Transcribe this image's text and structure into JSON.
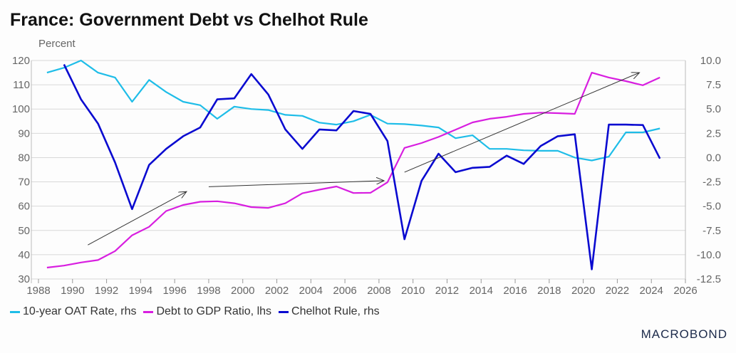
{
  "chart_data": {
    "type": "line",
    "title": "France: Government Debt vs Chelhot Rule",
    "left_axis_label": "Percent",
    "x_ticks": [
      "1988",
      "1990",
      "1992",
      "1994",
      "1996",
      "1998",
      "2000",
      "2002",
      "2004",
      "2006",
      "2008",
      "2010",
      "2012",
      "2014",
      "2016",
      "2018",
      "2020",
      "2022",
      "2024",
      "2026"
    ],
    "xlim": [
      1988,
      2026
    ],
    "ylim_left": [
      30,
      120
    ],
    "ylim_right": [
      -12.5,
      10
    ],
    "left_ticks": [
      "120",
      "110",
      "100",
      "90",
      "80",
      "70",
      "60",
      "50",
      "40",
      "30"
    ],
    "right_ticks": [
      "10.0",
      "7.5",
      "5.0",
      "2.5",
      "0.0",
      "-2.5",
      "-5.0",
      "-7.5",
      "-10.0",
      "-12.5"
    ],
    "grid": true,
    "legend_position": "bottom",
    "x": [
      1988.5,
      1989.5,
      1990.5,
      1991.5,
      1992.5,
      1993.5,
      1994.5,
      1995.5,
      1996.5,
      1997.5,
      1998.5,
      1999.5,
      2000.5,
      2001.5,
      2002.5,
      2003.5,
      2004.5,
      2005.5,
      2006.5,
      2007.5,
      2008.5,
      2009.5,
      2010.5,
      2011.5,
      2012.5,
      2013.5,
      2014.5,
      2015.5,
      2016.5,
      2017.5,
      2018.5,
      2019.5,
      2020.5,
      2021.5,
      2022.5,
      2023.5,
      2024.5
    ],
    "series": [
      {
        "name": "10-year OAT Rate, rhs",
        "axis": "right",
        "color": "#1ebde8",
        "values": [
          8.75,
          9.25,
          10.0,
          8.75,
          8.25,
          5.75,
          8.0,
          6.75,
          5.75,
          5.4,
          4.0,
          5.25,
          5.0,
          4.9,
          4.4,
          4.3,
          3.6,
          3.4,
          3.75,
          4.4,
          3.5,
          3.45,
          3.3,
          3.1,
          2.0,
          2.3,
          0.9,
          0.9,
          0.75,
          0.7,
          0.7,
          0.0,
          -0.3,
          0.1,
          2.6,
          2.6,
          3.0
        ]
      },
      {
        "name": "Debt to GDP Ratio, lhs",
        "axis": "left",
        "color": "#d81ee0",
        "values": [
          34.7,
          35.5,
          36.8,
          37.8,
          41.5,
          48,
          51.5,
          58,
          60.5,
          61.8,
          62,
          61.2,
          59.6,
          59.3,
          61.2,
          65.3,
          66.8,
          68.1,
          65.4,
          65.5,
          69.8,
          84,
          86,
          88.5,
          91.5,
          94.5,
          96,
          96.8,
          98,
          98.5,
          98.3,
          98,
          115,
          113,
          111.5,
          109.8,
          113
        ]
      },
      {
        "name": "Chelhot Rule, rhs",
        "axis": "right",
        "color": "#0a0ad0",
        "values": [
          null,
          9.6,
          6.0,
          3.5,
          -0.5,
          -5.3,
          -0.75,
          0.9,
          2.2,
          3.1,
          6.0,
          6.1,
          8.6,
          6.5,
          2.9,
          0.9,
          2.9,
          2.8,
          4.8,
          4.5,
          1.7,
          -8.4,
          -2.4,
          0.4,
          -1.5,
          -1.05,
          -0.95,
          0.2,
          -0.65,
          1.2,
          2.2,
          2.4,
          -11.5,
          3.4,
          3.4,
          3.35,
          -0.1
        ]
      }
    ]
  },
  "logo": "MACROBOND"
}
